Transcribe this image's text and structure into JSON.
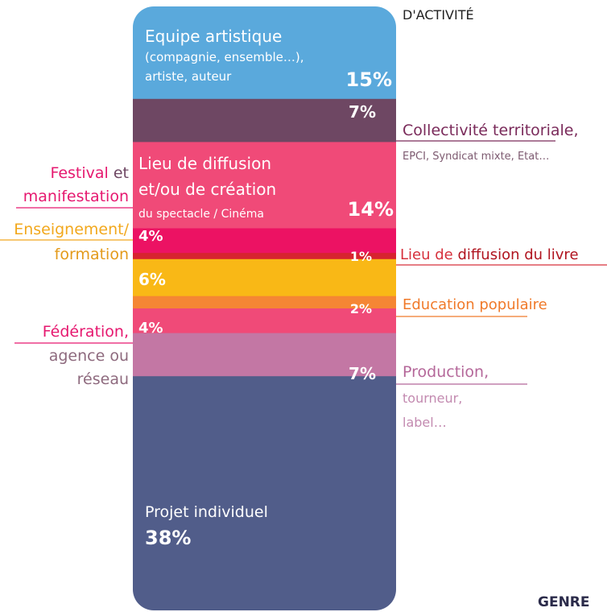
{
  "chart_data": {
    "type": "stacked-column",
    "title": "D'ACTIVITÉ",
    "footer": "GENRE",
    "segments": [
      {
        "value": 15,
        "value_label": "15%",
        "color": "#5aa9dc",
        "label": [
          [
            {
              "text": "Equipe artistique",
              "color": "#ffffff"
            }
          ],
          [
            {
              "text": "(compagnie, ensemble…),",
              "color": "#ffffff"
            }
          ],
          [
            {
              "text": "artiste, auteur",
              "color": "#ffffff"
            }
          ]
        ]
      },
      {
        "value": 7,
        "value_label": "7%",
        "color": "#6e4763",
        "label": [
          [
            {
              "text": "Collectivité territoriale,",
              "color": "#7a2a5a"
            }
          ],
          [
            {
              "text": "EPCI, Syndicat mixte, Etat…",
              "color": "#7d5a70"
            }
          ]
        ]
      },
      {
        "value": 14,
        "value_label": "14%",
        "color": "#f04a78",
        "label": [
          [
            {
              "text": "Lieu de diffusion",
              "color": "#ffffff"
            }
          ],
          [
            {
              "text": "et/ou de création",
              "color": "#ffffff"
            }
          ],
          [
            {
              "text": "du spectacle / Cinéma",
              "color": "#ffffff"
            }
          ]
        ]
      },
      {
        "value": 4,
        "value_label": "4%",
        "color": "#ec1263",
        "label": [
          [
            {
              "text": "Festival",
              "color": "#e6186f"
            },
            {
              "text": " et",
              "color": "#6e4763"
            }
          ],
          [
            {
              "text": "manifestation",
              "color": "#e6186f"
            }
          ]
        ]
      },
      {
        "value": 1,
        "value_label": "1%",
        "color": "#d7232f",
        "label": [
          [
            {
              "text": "Lieu de ",
              "color": "#d6303c"
            },
            {
              "text": "diffusion du livre",
              "color": "#b0141f"
            }
          ]
        ]
      },
      {
        "value": 6,
        "value_label": "6%",
        "color": "#f9b816",
        "label": [
          [
            {
              "text": "Enseignement/",
              "color": "#f2a81d"
            }
          ],
          [
            {
              "text": "formation",
              "color": "#e39a1a"
            }
          ]
        ]
      },
      {
        "value": 2,
        "value_label": "2%",
        "color": "#f58634",
        "label": [
          [
            {
              "text": "Education populaire",
              "color": "#f07a2a"
            }
          ]
        ]
      },
      {
        "value": 4,
        "value_label": "4%",
        "color": "#f04a78",
        "label": [
          [
            {
              "text": "Fédération,",
              "color": "#e6186f"
            }
          ],
          [
            {
              "text": "agence ou",
              "color": "#8e6a7e"
            }
          ],
          [
            {
              "text": "réseau",
              "color": "#8e6a7e"
            }
          ]
        ]
      },
      {
        "value": 7,
        "value_label": "7%",
        "color": "#c377a4",
        "label": [
          [
            {
              "text": "Production,",
              "color": "#b5689a"
            }
          ],
          [
            {
              "text": "tourneur,",
              "color": "#c38ab0"
            }
          ],
          [
            {
              "text": "label…",
              "color": "#c38ab0"
            }
          ]
        ]
      },
      {
        "value": 38,
        "value_label": "38%",
        "color": "#515d8a",
        "label": [
          [
            {
              "text": "Projet individuel",
              "color": "#ffffff"
            }
          ]
        ]
      }
    ]
  }
}
